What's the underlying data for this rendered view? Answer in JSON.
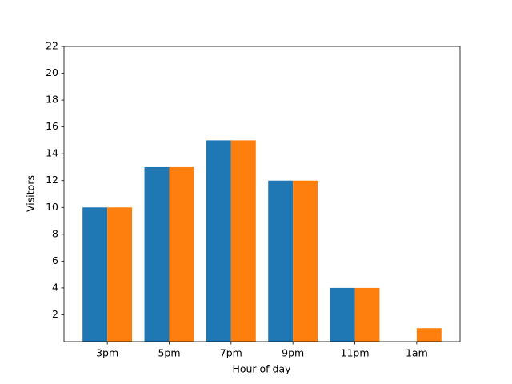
{
  "chart_data": {
    "type": "grouped_bar",
    "x_label": "Hour of day",
    "y_label": "Visitors",
    "categories": [
      "3pm",
      "5pm",
      "7pm",
      "9pm",
      "11pm",
      "1am"
    ],
    "series": [
      {
        "color": "#1f77b4",
        "values": [
          10,
          13,
          15,
          12,
          4,
          0
        ]
      },
      {
        "color": "#ff7f0e",
        "values": [
          10,
          13,
          15,
          12,
          4,
          1
        ]
      }
    ],
    "ylim": [
      0,
      22
    ],
    "yticks": [
      2,
      4,
      6,
      8,
      10,
      12,
      14,
      16,
      18,
      20,
      22
    ],
    "grid": false
  }
}
